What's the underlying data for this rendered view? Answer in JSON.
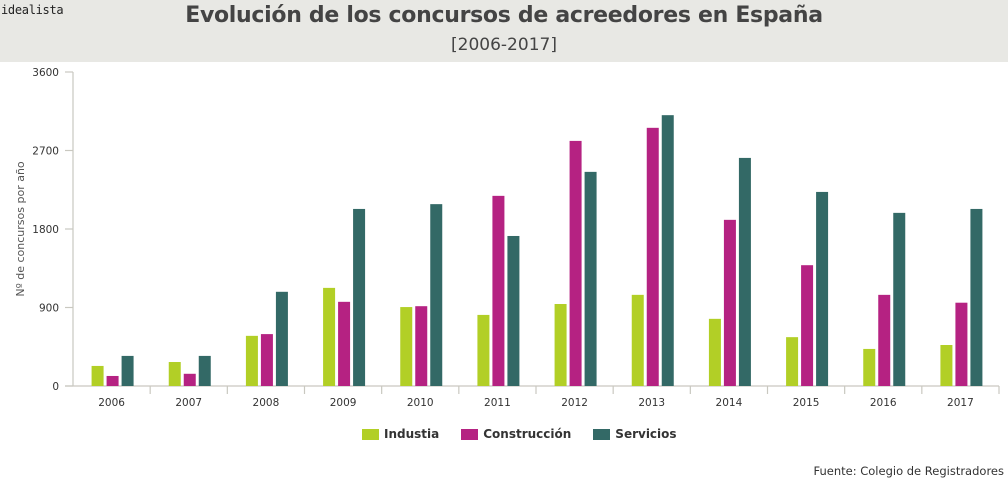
{
  "brand": "idealista",
  "header": {
    "title": "Evolución de los concursos de acreedores en España",
    "subtitle": "[2006-2017]"
  },
  "source": "Fuente: Colegio de Registradores",
  "colors": {
    "Industia": "#b2cf26",
    "Construcción": "#b52282",
    "Servicios": "#336966",
    "axis": "#c9c8c0",
    "header_bg": "#e8e8e4"
  },
  "chart_data": {
    "type": "bar",
    "title": "Evolución de los concursos de acreedores en España",
    "subtitle": "[2006-2017]",
    "xlabel": "",
    "ylabel": "Nº de concursos por año",
    "ylim": [
      0,
      3600
    ],
    "yticks": [
      0,
      900,
      1800,
      2700,
      3600
    ],
    "ytick_labels": [
      "0",
      "900",
      "1800",
      "2700",
      "3600"
    ],
    "grid": false,
    "legend_position": "bottom-center",
    "categories": [
      "2006",
      "2007",
      "2008",
      "2009",
      "2010",
      "2011",
      "2012",
      "2013",
      "2014",
      "2015",
      "2016",
      "2017"
    ],
    "series": [
      {
        "name": "Industia",
        "values": [
          230,
          275,
          575,
          1125,
          905,
          815,
          940,
          1045,
          770,
          560,
          425,
          470
        ]
      },
      {
        "name": "Construcción",
        "values": [
          115,
          140,
          595,
          965,
          915,
          2180,
          2810,
          2960,
          1905,
          1385,
          1045,
          955
        ]
      },
      {
        "name": "Servicios",
        "values": [
          345,
          345,
          1080,
          2030,
          2085,
          1720,
          2455,
          3105,
          2615,
          2225,
          1985,
          2030
        ]
      }
    ]
  }
}
